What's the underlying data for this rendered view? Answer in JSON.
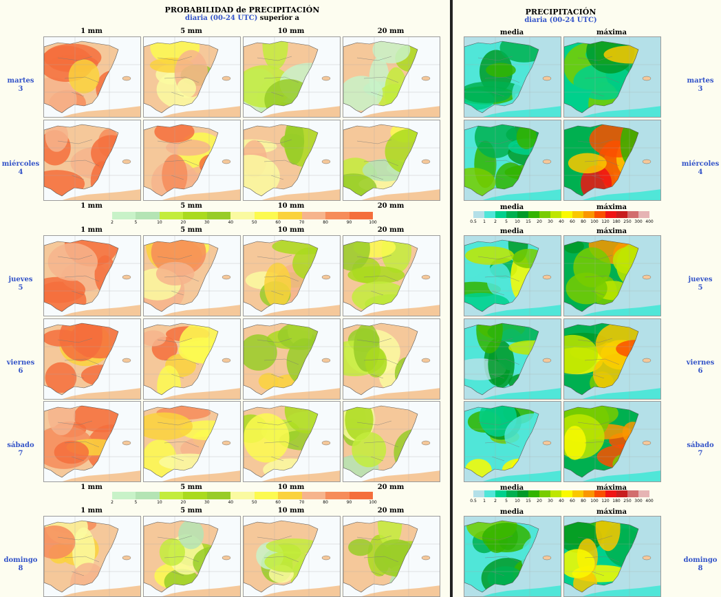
{
  "left_panel": {
    "title": "PROBABILIDAD de PRECIPITACIÓN",
    "subtitle_blue": "diaria (00-24 UTC)",
    "subtitle_black": "superior a",
    "thresholds": [
      "1 mm",
      "5 mm",
      "10 mm",
      "20 mm"
    ],
    "legend_values": [
      "2",
      "5",
      "10",
      "20",
      "30",
      "40",
      "50",
      "60",
      "70",
      "80",
      "90",
      "100"
    ],
    "legend_colors": [
      "#c8f2c8",
      "#b4e4b4",
      "#c3ec3c",
      "#aada1e",
      "#98cc28",
      "#fafaa0",
      "#fcfa50",
      "#fad23c",
      "#f6b48c",
      "#f68c5a",
      "#f46e3c"
    ]
  },
  "right_panel": {
    "title": "PRECIPITACIÓN",
    "subtitle": "diaria (00-24 UTC)",
    "columns": [
      "media",
      "máxima"
    ],
    "legend_values": [
      "0.5",
      "1",
      "2",
      "5",
      "10",
      "15",
      "20",
      "30",
      "40",
      "60",
      "80",
      "100",
      "120",
      "180",
      "250",
      "300",
      "400"
    ],
    "legend_colors": [
      "#b4e0e8",
      "#50e6d8",
      "#00d08c",
      "#00b050",
      "#009a28",
      "#32b400",
      "#78cc00",
      "#bee600",
      "#fafa00",
      "#fac800",
      "#fa9600",
      "#fa5000",
      "#f01414",
      "#c81e1e",
      "#d26e6e",
      "#e6b4b4"
    ]
  },
  "days": [
    {
      "name": "martes",
      "num": "3"
    },
    {
      "name": "miércoles",
      "num": "4"
    },
    {
      "name": "jueves",
      "num": "5"
    },
    {
      "name": "viernes",
      "num": "6"
    },
    {
      "name": "sábado",
      "num": "7"
    },
    {
      "name": "domingo",
      "num": "8"
    }
  ]
}
